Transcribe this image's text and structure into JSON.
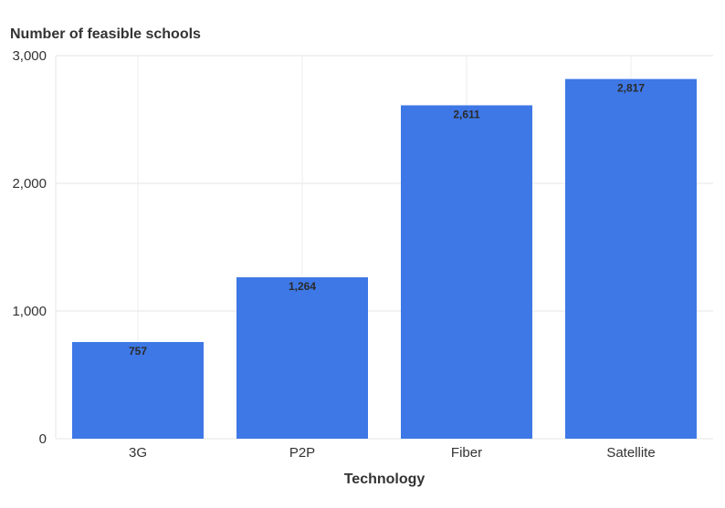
{
  "chart_data": {
    "type": "bar",
    "xlabel": "Technology",
    "ylabel": "Number of feasible schools",
    "categories": [
      "3G",
      "P2P",
      "Fiber",
      "Satellite"
    ],
    "values": [
      757,
      1264,
      2611,
      2817
    ],
    "value_labels": [
      "757",
      "1,264",
      "2,611",
      "2,817"
    ],
    "ylim": [
      0,
      3000
    ],
    "yticks": [
      0,
      1000,
      2000,
      3000
    ],
    "ytick_labels": [
      "0",
      "1,000",
      "2,000",
      "3,000"
    ],
    "grid": true,
    "bar_color": "#3e78e6"
  }
}
